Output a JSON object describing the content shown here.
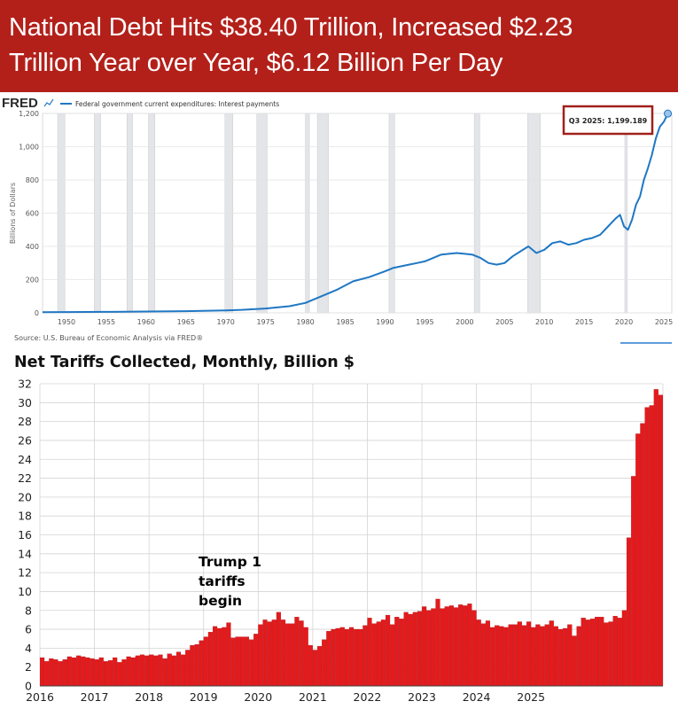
{
  "banner": {
    "line1": "National Debt Hits $38.40 Trillion, Increased $2.23",
    "line2": "Trillion Year over Year, $6.12 Billion Per Day",
    "bg_color": "#b3201a"
  },
  "fred": {
    "logo": "FRED",
    "source": "Source: U.S. Bureau of Economic Analysis via FRED®",
    "callout": "Q3 2025:  1,199.189"
  },
  "tariffs": {
    "annotation_lines": [
      "Trump 1",
      "tariffs",
      "begin"
    ]
  },
  "chart_data": [
    {
      "type": "line",
      "title": "Federal government current expenditures: Interest payments",
      "ylabel": "Billions of Dollars",
      "xlabel": "",
      "xlim": [
        1947,
        2026
      ],
      "ylim": [
        0,
        1200
      ],
      "x_ticks": [
        "1950",
        "1955",
        "1960",
        "1965",
        "1970",
        "1975",
        "1980",
        "1985",
        "1990",
        "1995",
        "2000",
        "2005",
        "2010",
        "2015",
        "2020",
        "2025"
      ],
      "y_ticks": [
        "0",
        "200",
        "400",
        "600",
        "800",
        "1,000",
        "1,200"
      ],
      "grid": true,
      "color": "#1f77c4",
      "recessions": [
        [
          1948.9,
          1949.8
        ],
        [
          1953.5,
          1954.3
        ],
        [
          1957.6,
          1958.3
        ],
        [
          1960.3,
          1961.1
        ],
        [
          1969.9,
          1970.9
        ],
        [
          1973.9,
          1975.2
        ],
        [
          1980.0,
          1980.5
        ],
        [
          1981.5,
          1982.9
        ],
        [
          1990.5,
          1991.2
        ],
        [
          2001.2,
          2001.9
        ],
        [
          2007.9,
          2009.5
        ],
        [
          2020.1,
          2020.4
        ]
      ],
      "series": [
        {
          "name": "Federal government current expenditures: Interest payments",
          "x": [
            1947,
            1950,
            1955,
            1960,
            1965,
            1970,
            1972,
            1975,
            1978,
            1980,
            1982,
            1984,
            1986,
            1988,
            1990,
            1991,
            1993,
            1994,
            1995,
            1997,
            1998,
            1999,
            2000,
            2001,
            2002,
            2003,
            2004,
            2005,
            2006,
            2007,
            2008,
            2009,
            2010,
            2011,
            2012,
            2013,
            2014,
            2015,
            2016,
            2017,
            2018,
            2019,
            2019.5,
            2020,
            2020.5,
            2021,
            2021.5,
            2022,
            2022.5,
            2023,
            2023.5,
            2024,
            2024.5,
            2025,
            2025.5
          ],
          "values": [
            4,
            5,
            6,
            8,
            10,
            15,
            18,
            26,
            40,
            60,
            100,
            140,
            190,
            215,
            250,
            270,
            290,
            300,
            310,
            350,
            355,
            360,
            355,
            350,
            330,
            300,
            290,
            300,
            340,
            370,
            400,
            360,
            380,
            420,
            430,
            410,
            420,
            440,
            450,
            470,
            520,
            570,
            590,
            520,
            500,
            560,
            650,
            700,
            800,
            870,
            950,
            1050,
            1120,
            1150,
            1199.189
          ]
        }
      ]
    },
    {
      "type": "bar",
      "title": "Net Tariffs Collected, Monthly, Billion $",
      "xlabel": "",
      "ylabel": "",
      "ylim": [
        0,
        32
      ],
      "y_ticks": [
        0,
        2,
        4,
        6,
        8,
        10,
        12,
        14,
        16,
        18,
        20,
        22,
        24,
        26,
        28,
        30,
        32
      ],
      "x_ticks": [
        "2016",
        "2017",
        "2018",
        "2019",
        "2020",
        "2021",
        "2022",
        "2023",
        "2024",
        "2025"
      ],
      "start": "2016-01",
      "color": "#e41a1c",
      "values": [
        3.0,
        2.6,
        2.9,
        2.8,
        2.6,
        2.8,
        3.1,
        3.0,
        3.2,
        3.1,
        3.0,
        2.9,
        2.8,
        3.0,
        2.6,
        2.7,
        3.0,
        2.5,
        2.8,
        3.1,
        3.0,
        3.2,
        3.3,
        3.2,
        3.3,
        3.2,
        3.3,
        2.9,
        3.4,
        3.2,
        3.6,
        3.3,
        3.8,
        4.3,
        4.4,
        4.8,
        5.2,
        5.7,
        6.3,
        6.1,
        6.2,
        6.7,
        5.1,
        5.2,
        5.2,
        5.2,
        4.9,
        5.5,
        6.5,
        7.0,
        6.8,
        7.0,
        7.8,
        7.0,
        6.6,
        6.6,
        7.3,
        6.9,
        6.2,
        4.3,
        3.8,
        4.2,
        4.9,
        5.8,
        6.0,
        6.1,
        6.2,
        6.0,
        6.2,
        6.0,
        6.0,
        6.4,
        7.2,
        6.6,
        6.8,
        7.0,
        7.5,
        6.5,
        7.3,
        7.1,
        7.8,
        7.6,
        7.8,
        7.9,
        8.4,
        8.0,
        8.2,
        9.2,
        8.2,
        8.4,
        8.5,
        8.3,
        8.6,
        8.5,
        8.7,
        8.0,
        7.0,
        6.6,
        6.9,
        6.2,
        6.4,
        6.3,
        6.2,
        6.5,
        6.5,
        6.8,
        6.4,
        6.8,
        6.2,
        6.5,
        6.3,
        6.5,
        6.9,
        6.3,
        6.0,
        6.1,
        6.5,
        5.3,
        6.3,
        7.2,
        7.0,
        7.1,
        7.3,
        7.3,
        6.7,
        6.8,
        7.4,
        7.2,
        8.0,
        15.7,
        22.2,
        26.7,
        27.8,
        29.5,
        29.7,
        31.4,
        30.8
      ]
    }
  ]
}
